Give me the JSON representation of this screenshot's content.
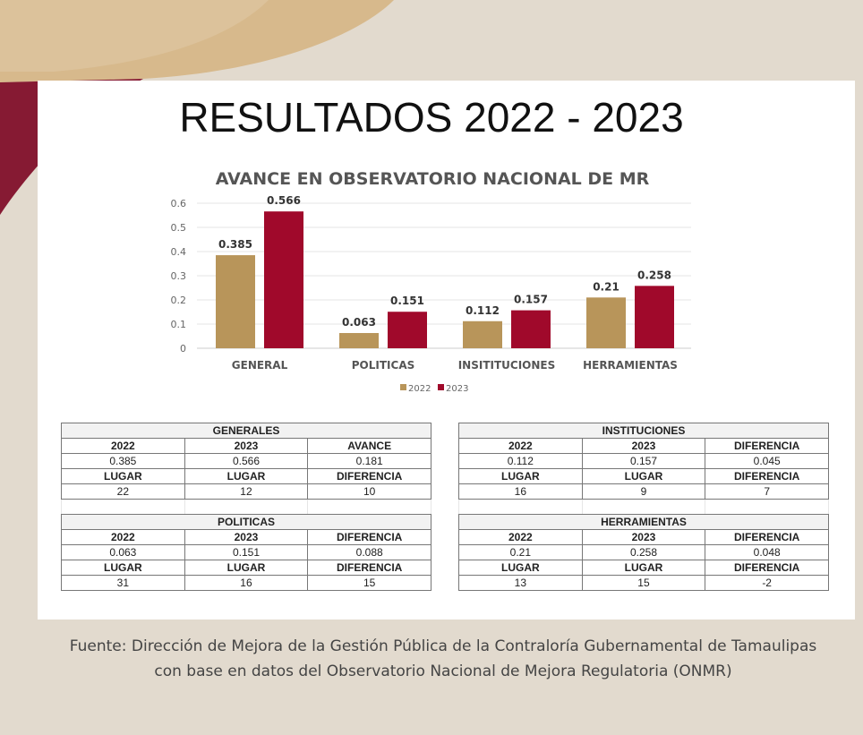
{
  "title": "RESULTADOS 2022 - 2023",
  "colors": {
    "y2022": "#b8955a",
    "y2023": "#a0092b",
    "background": "#e2dace",
    "swoosh_tan": "#d7b98c",
    "swoosh_maroon": "#8a1530"
  },
  "chart_data": {
    "type": "bar",
    "title": "AVANCE EN OBSERVATORIO NACIONAL DE MR",
    "categories": [
      "GENERAL",
      "POLITICAS",
      "INSITITUCIONES",
      "HERRAMIENTAS"
    ],
    "series": [
      {
        "name": "2022",
        "values": [
          0.385,
          0.063,
          0.112,
          0.21
        ],
        "labels": [
          "0.385",
          "0.063",
          "0.112",
          "0.21"
        ],
        "color": "#b8955a"
      },
      {
        "name": "2023",
        "values": [
          0.566,
          0.151,
          0.157,
          0.258
        ],
        "labels": [
          "0.566",
          "0.151",
          "0.157",
          "0.258"
        ],
        "color": "#a0092b"
      }
    ],
    "yticks": [
      "0",
      "0.1",
      "0.2",
      "0.3",
      "0.4",
      "0.5",
      "0.6"
    ],
    "ylim": [
      0,
      0.6
    ],
    "grid": true,
    "legend": "bottom-center",
    "xlabel": "",
    "ylabel": ""
  },
  "tables": {
    "generales": {
      "title": "GENERALES",
      "h1": [
        "2022",
        "2023",
        "AVANCE"
      ],
      "r1": [
        "0.385",
        "0.566",
        "0.181"
      ],
      "h2": [
        "LUGAR",
        "LUGAR",
        "DIFERENCIA"
      ],
      "r2": [
        "22",
        "12",
        "10"
      ]
    },
    "politicas": {
      "title": "POLITICAS",
      "h1": [
        "2022",
        "2023",
        "DIFERENCIA"
      ],
      "r1": [
        "0.063",
        "0.151",
        "0.088"
      ],
      "h2": [
        "LUGAR",
        "LUGAR",
        "DIFERENCIA"
      ],
      "r2": [
        "31",
        "16",
        "15"
      ]
    },
    "instituciones": {
      "title": "INSTITUCIONES",
      "h1": [
        "2022",
        "2023",
        "DIFERENCIA"
      ],
      "r1": [
        "0.112",
        "0.157",
        "0.045"
      ],
      "h2": [
        "LUGAR",
        "LUGAR",
        "DIFERENCIA"
      ],
      "r2": [
        "16",
        "9",
        "7"
      ]
    },
    "herramientas": {
      "title": "HERRAMIENTAS",
      "h1": [
        "2022",
        "2023",
        "DIFERENCIA"
      ],
      "r1": [
        "0.21",
        "0.258",
        "0.048"
      ],
      "h2": [
        "LUGAR",
        "LUGAR",
        "DIFERENCIA"
      ],
      "r2": [
        "13",
        "15",
        "-2"
      ]
    }
  },
  "source": {
    "line1": "Fuente: Dirección de Mejora de la Gestión Pública de la Contraloría Gubernamental de Tamaulipas",
    "line2": "con base en datos del Observatorio Nacional de Mejora Regulatoria (ONMR)"
  }
}
